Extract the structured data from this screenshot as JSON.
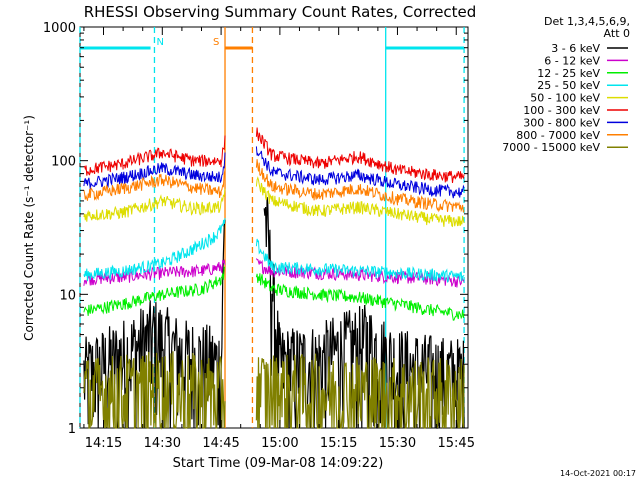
{
  "chart_data": {
    "type": "line",
    "title": "RHESSI Observing Summary Count Rates, Corrected",
    "xlabel": "Start Time (09-Mar-08 14:09:22)",
    "ylabel": "Corrected Count Rate (s⁻¹ detector⁻¹)",
    "yscale": "log",
    "ylim": [
      1,
      1000
    ],
    "xlim": [
      "14:09",
      "15:48"
    ],
    "x_ticks": [
      "14:15",
      "14:30",
      "14:45",
      "15:00",
      "15:15",
      "15:30",
      "15:45"
    ],
    "y_ticks": [
      "1",
      "10",
      "100",
      "1000"
    ],
    "detector_label": "Det 1,3,4,5,6,9,",
    "attenuator_label": "Att 0",
    "footer": "14-Oct-2021 00:17",
    "series": [
      {
        "name": "3 - 6 keV",
        "color": "#000000",
        "t": [
          "14:10",
          "14:20",
          "14:28",
          "14:35",
          "14:45",
          "14:46",
          "14:53",
          "14:56",
          "15:00",
          "15:10",
          "15:15",
          "15:22",
          "15:30",
          "15:40",
          "15:47"
        ],
        "v": [
          2.5,
          3.5,
          5.0,
          3.5,
          3.0,
          50,
          null,
          50,
          3.0,
          3.2,
          3.8,
          4.5,
          3.0,
          2.6,
          2.5
        ]
      },
      {
        "name": "6 - 12 keV",
        "color": "#cc00cc",
        "t": [
          "14:10",
          "14:20",
          "14:30",
          "14:40",
          "14:45",
          "14:46",
          "14:53",
          "14:54",
          "14:58",
          "15:10",
          "15:20",
          "15:30",
          "15:40",
          "15:47"
        ],
        "v": [
          13,
          13.5,
          14.5,
          15,
          16,
          17,
          null,
          17,
          15,
          14.5,
          14,
          13.5,
          13,
          12.5
        ]
      },
      {
        "name": "12 - 25 keV",
        "color": "#00ee00",
        "t": [
          "14:10",
          "14:20",
          "14:30",
          "14:40",
          "14:45",
          "14:46",
          "14:53",
          "14:54",
          "14:58",
          "15:10",
          "15:20",
          "15:30",
          "15:40",
          "15:47"
        ],
        "v": [
          7.5,
          8.5,
          10,
          11,
          13,
          15,
          null,
          14,
          11,
          10,
          9.5,
          8.5,
          7.5,
          7
        ]
      },
      {
        "name": "25 - 50 keV",
        "color": "#00e5ee",
        "t": [
          "14:10",
          "14:20",
          "14:30",
          "14:38",
          "14:44",
          "14:46",
          "14:53",
          "14:54",
          "14:58",
          "15:10",
          "15:20",
          "15:30",
          "15:40",
          "15:47"
        ],
        "v": [
          14,
          15,
          17,
          22,
          28,
          34,
          null,
          24,
          16,
          15.5,
          15,
          14.5,
          14,
          13.5
        ]
      },
      {
        "name": "50 - 100 keV",
        "color": "#dddd00",
        "t": [
          "14:10",
          "14:20",
          "14:30",
          "14:38",
          "14:45",
          "14:46",
          "14:53",
          "14:54",
          "14:58",
          "15:10",
          "15:20",
          "15:30",
          "15:40",
          "15:47"
        ],
        "v": [
          39,
          41,
          50,
          44,
          45,
          60,
          null,
          70,
          50,
          42,
          45,
          40,
          36,
          35
        ]
      },
      {
        "name": "100 - 300 keV",
        "color": "#ee0000",
        "t": [
          "14:10",
          "14:20",
          "14:30",
          "14:38",
          "14:45",
          "14:46",
          "14:53",
          "14:54",
          "14:58",
          "15:10",
          "15:20",
          "15:30",
          "15:40",
          "15:47"
        ],
        "v": [
          85,
          95,
          115,
          100,
          100,
          140,
          null,
          165,
          110,
          95,
          108,
          85,
          78,
          75
        ]
      },
      {
        "name": "300 - 800 keV",
        "color": "#0000dd",
        "t": [
          "14:10",
          "14:20",
          "14:30",
          "14:38",
          "14:45",
          "14:46",
          "14:53",
          "14:54",
          "14:58",
          "15:10",
          "15:20",
          "15:30",
          "15:40",
          "15:47"
        ],
        "v": [
          67,
          75,
          88,
          78,
          75,
          105,
          null,
          125,
          82,
          72,
          78,
          66,
          60,
          58
        ]
      },
      {
        "name": "800 - 7000 keV",
        "color": "#ff7f00",
        "t": [
          "14:10",
          "14:20",
          "14:30",
          "14:38",
          "14:45",
          "14:46",
          "14:53",
          "14:54",
          "14:58",
          "15:10",
          "15:20",
          "15:30",
          "15:40",
          "15:47"
        ],
        "v": [
          55,
          62,
          72,
          63,
          58,
          80,
          null,
          95,
          64,
          56,
          62,
          52,
          47,
          45
        ]
      },
      {
        "name": "7000 - 15000 keV",
        "color": "#808000",
        "t": [
          "14:10",
          "14:20",
          "14:30",
          "14:40",
          "14:45",
          "14:46",
          "14:53",
          "14:54",
          "15:00",
          "15:10",
          "15:20",
          "15:30",
          "15:40",
          "15:47"
        ],
        "v": [
          1.8,
          1.9,
          2.0,
          1.9,
          1.8,
          2.0,
          null,
          2.0,
          1.9,
          1.9,
          1.9,
          1.8,
          1.8,
          1.8
        ]
      }
    ],
    "flag_bars": [
      {
        "label": "N",
        "color": "#00e5ee",
        "start": "14:09",
        "end": "14:27"
      },
      {
        "label": "S",
        "color": "#ff7f00",
        "start": "14:46",
        "end": "14:53"
      },
      {
        "label": "",
        "color": "#00e5ee",
        "start": "15:27",
        "end": "15:47"
      }
    ],
    "v_lines": [
      {
        "time": "14:09",
        "color": "#00e5ee",
        "style": "dashed"
      },
      {
        "time": "14:28",
        "color": "#00e5ee",
        "style": "dashed"
      },
      {
        "time": "14:46",
        "color": "#ff7f00",
        "style": "solid"
      },
      {
        "time": "14:53",
        "color": "#ff7f00",
        "style": "dashed"
      },
      {
        "time": "15:27",
        "color": "#00e5ee",
        "style": "solid"
      },
      {
        "time": "15:47",
        "color": "#00e5ee",
        "style": "dashed"
      }
    ],
    "legend_position": "right"
  }
}
